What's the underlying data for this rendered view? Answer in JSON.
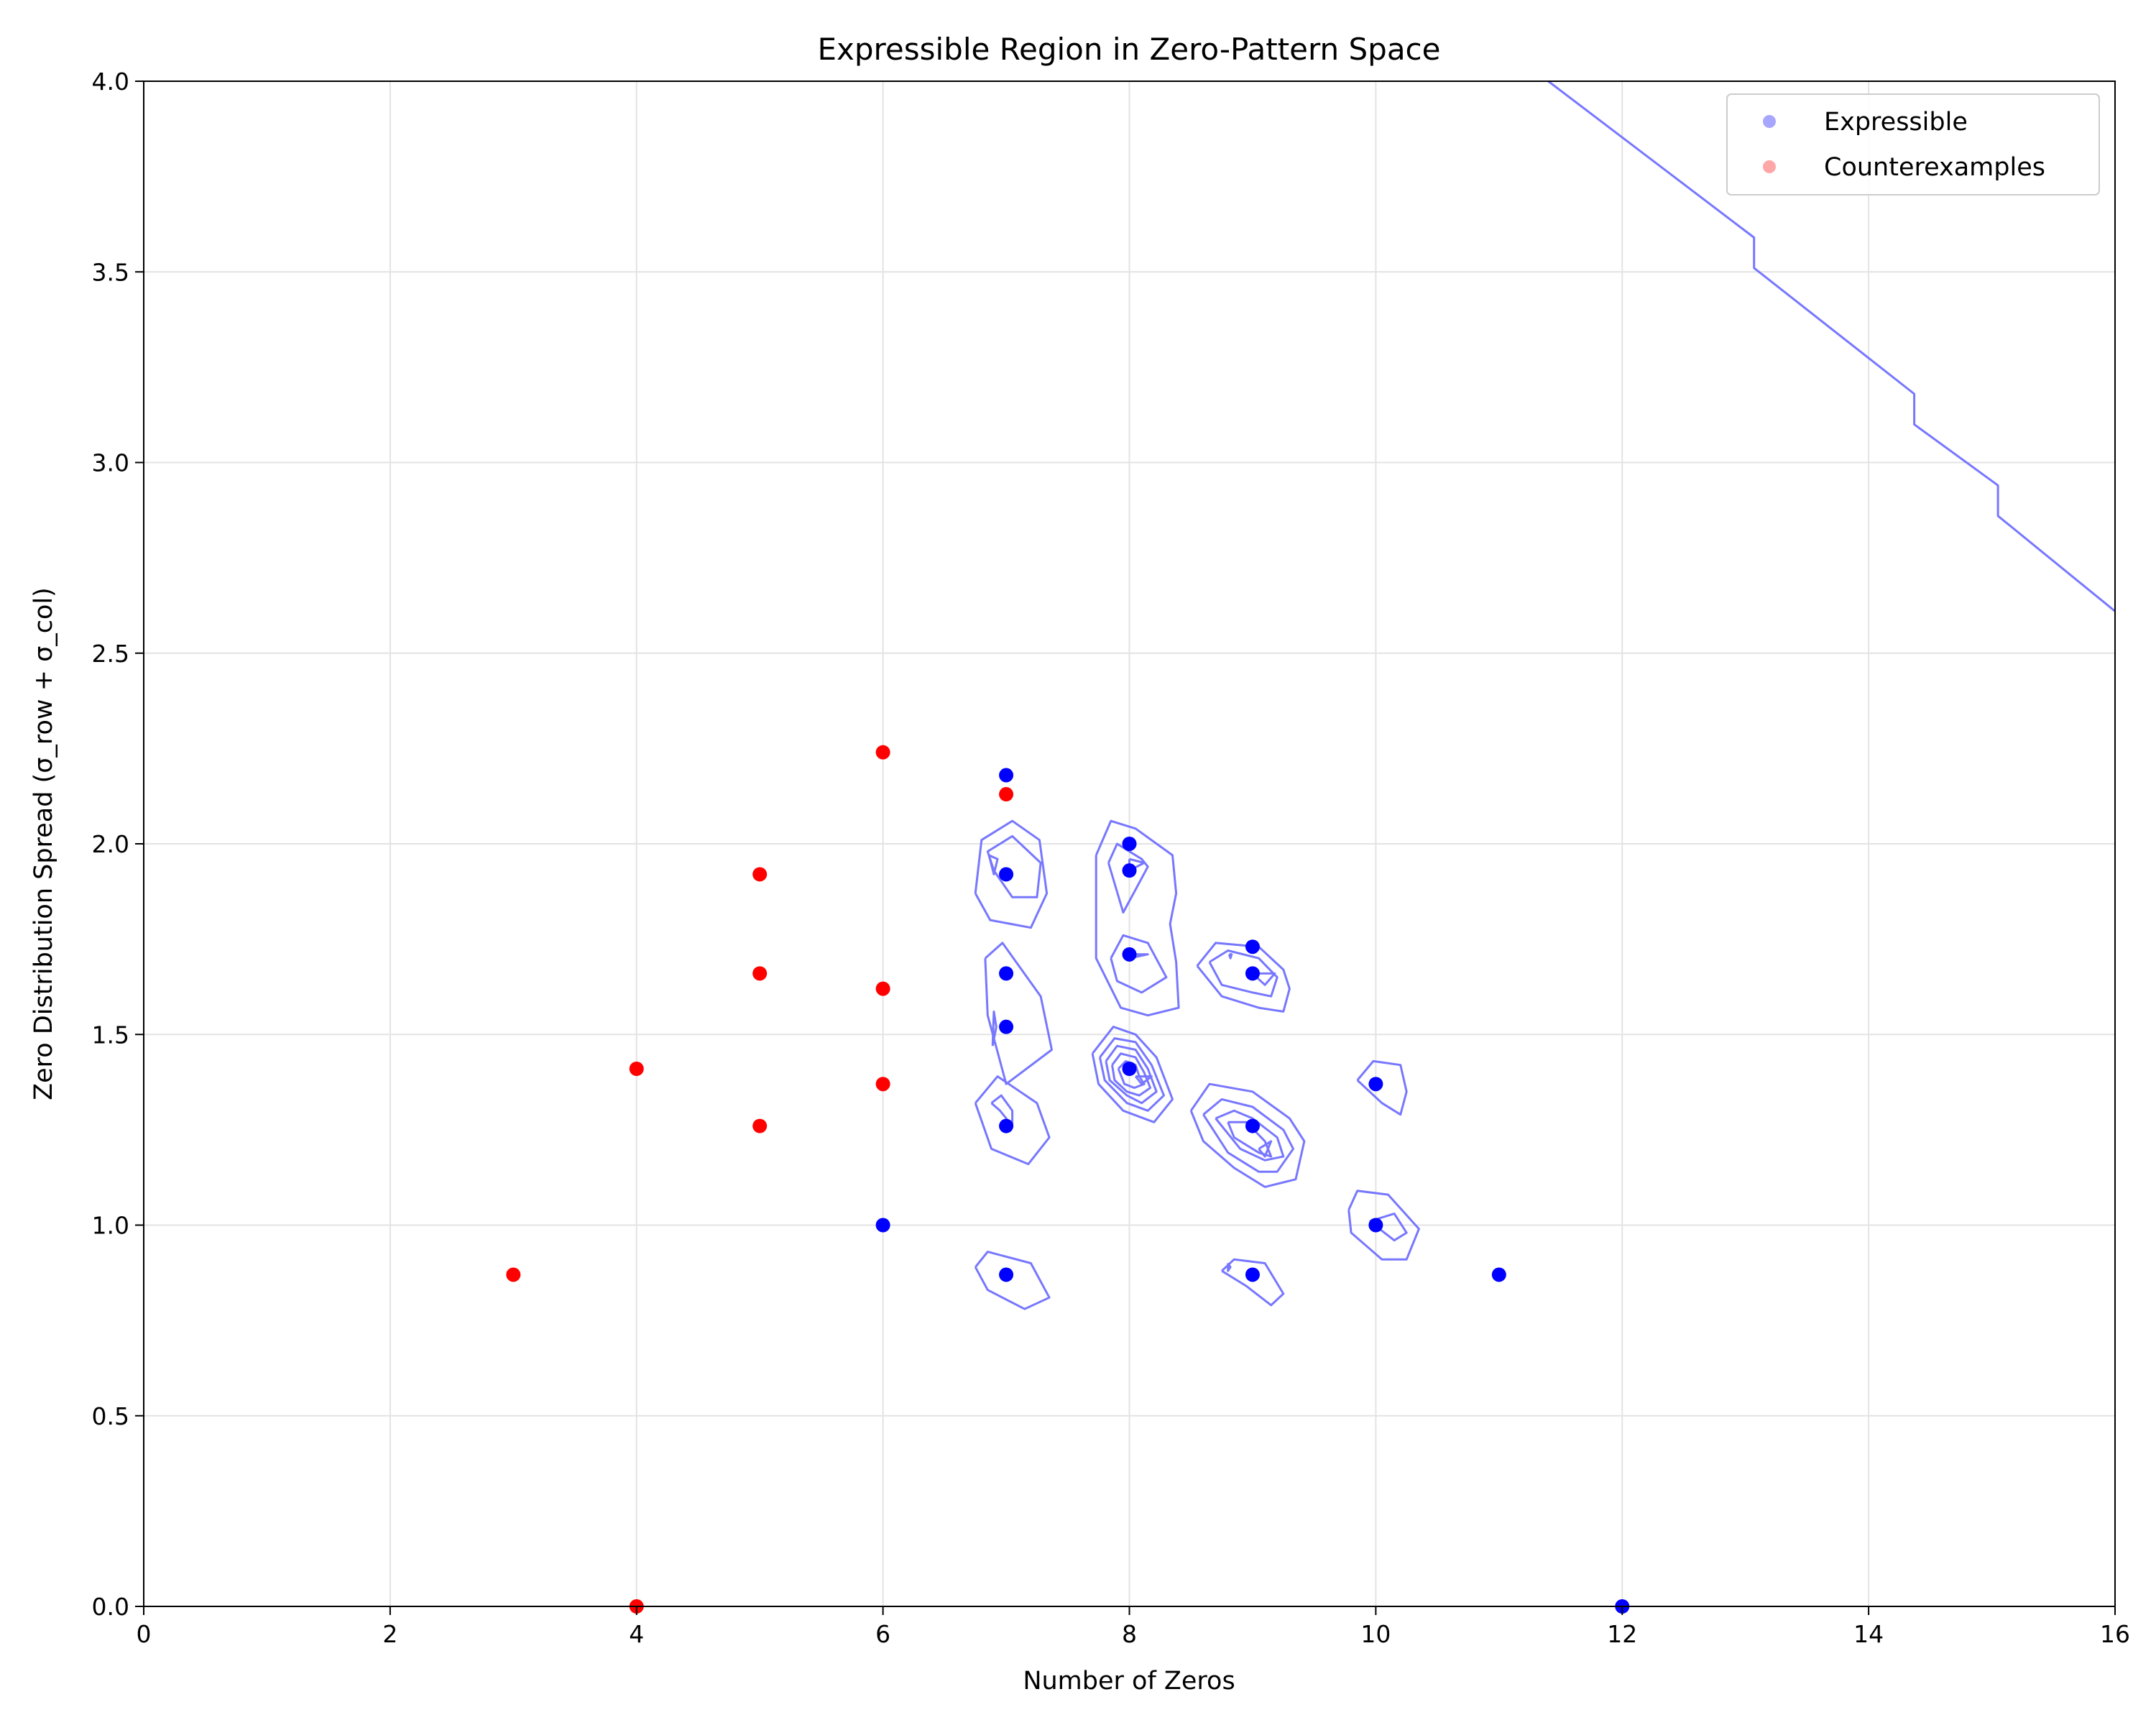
{
  "chart_data": {
    "type": "scatter",
    "title": "Expressible Region in Zero-Pattern Space",
    "xlabel": "Number of Zeros",
    "ylabel": "Zero Distribution Spread (σ_row + σ_col)",
    "xlim": [
      0,
      16
    ],
    "ylim": [
      0,
      4
    ],
    "xticks": [
      "0",
      "2",
      "4",
      "6",
      "8",
      "10",
      "12",
      "14",
      "16"
    ],
    "yticks": [
      "0.0",
      "0.5",
      "1.0",
      "1.5",
      "2.0",
      "2.5",
      "3.0",
      "3.5",
      "4.0"
    ],
    "grid": true,
    "legend_position": "top-right",
    "series": [
      {
        "name": "Expressible",
        "color": "#0000ff",
        "points": [
          {
            "x": 6,
            "y": 1.0
          },
          {
            "x": 7,
            "y": 2.18
          },
          {
            "x": 7,
            "y": 1.92
          },
          {
            "x": 7,
            "y": 1.66
          },
          {
            "x": 7,
            "y": 1.52
          },
          {
            "x": 7,
            "y": 1.26
          },
          {
            "x": 7,
            "y": 0.87
          },
          {
            "x": 8,
            "y": 2.0
          },
          {
            "x": 8,
            "y": 1.93
          },
          {
            "x": 8,
            "y": 1.71
          },
          {
            "x": 8,
            "y": 1.41
          },
          {
            "x": 9,
            "y": 1.73
          },
          {
            "x": 9,
            "y": 1.66
          },
          {
            "x": 9,
            "y": 1.26
          },
          {
            "x": 9,
            "y": 0.87
          },
          {
            "x": 10,
            "y": 1.37
          },
          {
            "x": 10,
            "y": 1.0
          },
          {
            "x": 11,
            "y": 0.87
          },
          {
            "x": 12,
            "y": 0.0
          }
        ]
      },
      {
        "name": "Counterexamples",
        "color": "#ff0000",
        "points": [
          {
            "x": 3,
            "y": 0.87
          },
          {
            "x": 4,
            "y": 0.0
          },
          {
            "x": 4,
            "y": 1.41
          },
          {
            "x": 5,
            "y": 1.26
          },
          {
            "x": 5,
            "y": 1.66
          },
          {
            "x": 5,
            "y": 1.92
          },
          {
            "x": 6,
            "y": 1.37
          },
          {
            "x": 6,
            "y": 1.62
          },
          {
            "x": 6,
            "y": 2.24
          },
          {
            "x": 7,
            "y": 2.13
          }
        ]
      }
    ],
    "contours": {
      "color": "#7777ff",
      "lines": [
        [
          [
            11.4,
            4.0
          ],
          [
            13.07,
            3.59
          ],
          [
            13.07,
            3.51
          ],
          [
            14.37,
            3.18
          ],
          [
            14.37,
            3.1
          ],
          [
            15.05,
            2.94
          ],
          [
            15.05,
            2.86
          ],
          [
            16.0,
            2.61
          ]
        ],
        [
          [
            6.75,
            1.87
          ],
          [
            6.87,
            1.8
          ],
          [
            7.2,
            1.78
          ],
          [
            7.33,
            1.87
          ],
          [
            7.27,
            2.01
          ],
          [
            7.05,
            2.06
          ],
          [
            6.8,
            2.01
          ],
          [
            6.75,
            1.87
          ]
        ],
        [
          [
            6.9,
            1.93
          ],
          [
            7.05,
            1.86
          ],
          [
            7.25,
            1.86
          ],
          [
            7.28,
            1.95
          ],
          [
            7.05,
            2.02
          ],
          [
            6.85,
            1.98
          ],
          [
            6.9,
            1.93
          ]
        ],
        [
          [
            6.86,
            1.97
          ],
          [
            6.9,
            1.92
          ],
          [
            6.93,
            1.96
          ],
          [
            6.86,
            1.97
          ]
        ],
        [
          [
            6.83,
            1.7
          ],
          [
            6.97,
            1.74
          ],
          [
            7.28,
            1.6
          ],
          [
            7.37,
            1.46
          ],
          [
            7.0,
            1.37
          ],
          [
            6.85,
            1.55
          ],
          [
            6.83,
            1.7
          ]
        ],
        [
          [
            6.89,
            1.47
          ],
          [
            6.92,
            1.52
          ],
          [
            6.9,
            1.56
          ],
          [
            6.89,
            1.47
          ]
        ],
        [
          [
            6.75,
            1.32
          ],
          [
            6.93,
            1.39
          ],
          [
            7.25,
            1.32
          ],
          [
            7.35,
            1.23
          ],
          [
            7.18,
            1.16
          ],
          [
            6.88,
            1.2
          ],
          [
            6.75,
            1.32
          ]
        ],
        [
          [
            6.88,
            1.32
          ],
          [
            6.96,
            1.34
          ],
          [
            7.05,
            1.3
          ],
          [
            7.05,
            1.26
          ],
          [
            6.95,
            1.3
          ],
          [
            6.88,
            1.32
          ]
        ],
        [
          [
            6.75,
            0.89
          ],
          [
            6.85,
            0.93
          ],
          [
            7.2,
            0.9
          ],
          [
            7.35,
            0.81
          ],
          [
            7.15,
            0.78
          ],
          [
            6.85,
            0.83
          ],
          [
            6.75,
            0.89
          ]
        ],
        [
          [
            7.73,
            1.97
          ],
          [
            7.85,
            2.06
          ],
          [
            8.05,
            2.04
          ],
          [
            8.35,
            1.97
          ],
          [
            8.38,
            1.87
          ],
          [
            8.33,
            1.79
          ],
          [
            8.38,
            1.69
          ],
          [
            8.4,
            1.57
          ],
          [
            8.15,
            1.55
          ],
          [
            7.93,
            1.57
          ],
          [
            7.73,
            1.7
          ],
          [
            7.73,
            1.97
          ]
        ],
        [
          [
            7.83,
            1.95
          ],
          [
            7.9,
            2.0
          ],
          [
            8.1,
            1.96
          ],
          [
            8.15,
            1.94
          ],
          [
            8.05,
            1.88
          ],
          [
            7.95,
            1.82
          ],
          [
            7.83,
            1.95
          ]
        ],
        [
          [
            8.0,
            1.96
          ],
          [
            8.12,
            1.95
          ],
          [
            8.0,
            1.93
          ],
          [
            8.0,
            1.96
          ]
        ],
        [
          [
            7.85,
            1.7
          ],
          [
            7.95,
            1.76
          ],
          [
            8.15,
            1.74
          ],
          [
            8.3,
            1.65
          ],
          [
            8.1,
            1.61
          ],
          [
            7.9,
            1.64
          ],
          [
            7.85,
            1.7
          ]
        ],
        [
          [
            8.0,
            1.71
          ],
          [
            8.15,
            1.71
          ],
          [
            8.0,
            1.7
          ],
          [
            8.0,
            1.71
          ]
        ],
        [
          [
            7.7,
            1.45
          ],
          [
            7.87,
            1.52
          ],
          [
            8.05,
            1.5
          ],
          [
            8.22,
            1.44
          ],
          [
            8.35,
            1.33
          ],
          [
            8.2,
            1.27
          ],
          [
            7.95,
            1.3
          ],
          [
            7.75,
            1.37
          ],
          [
            7.7,
            1.45
          ]
        ],
        [
          [
            7.76,
            1.44
          ],
          [
            7.88,
            1.49
          ],
          [
            8.05,
            1.48
          ],
          [
            8.18,
            1.42
          ],
          [
            8.28,
            1.34
          ],
          [
            8.15,
            1.3
          ],
          [
            7.98,
            1.32
          ],
          [
            7.8,
            1.38
          ],
          [
            7.76,
            1.44
          ]
        ],
        [
          [
            7.81,
            1.43
          ],
          [
            7.9,
            1.47
          ],
          [
            8.05,
            1.46
          ],
          [
            8.15,
            1.41
          ],
          [
            8.22,
            1.35
          ],
          [
            8.1,
            1.32
          ],
          [
            7.98,
            1.34
          ],
          [
            7.84,
            1.38
          ],
          [
            7.81,
            1.43
          ]
        ],
        [
          [
            7.86,
            1.42
          ],
          [
            7.93,
            1.45
          ],
          [
            8.05,
            1.44
          ],
          [
            8.12,
            1.4
          ],
          [
            8.17,
            1.36
          ],
          [
            8.08,
            1.34
          ],
          [
            7.98,
            1.35
          ],
          [
            7.88,
            1.38
          ],
          [
            7.86,
            1.42
          ]
        ],
        [
          [
            7.91,
            1.41
          ],
          [
            7.97,
            1.43
          ],
          [
            8.05,
            1.42
          ],
          [
            8.08,
            1.39
          ],
          [
            8.12,
            1.37
          ],
          [
            8.04,
            1.36
          ],
          [
            7.96,
            1.37
          ],
          [
            7.91,
            1.41
          ]
        ],
        [
          [
            8.05,
            1.39
          ],
          [
            8.18,
            1.39
          ],
          [
            8.1,
            1.37
          ],
          [
            8.05,
            1.39
          ]
        ],
        [
          [
            8.55,
            1.68
          ],
          [
            8.7,
            1.74
          ],
          [
            9.05,
            1.73
          ],
          [
            9.25,
            1.67
          ],
          [
            9.3,
            1.62
          ],
          [
            9.25,
            1.56
          ],
          [
            9.05,
            1.57
          ],
          [
            8.75,
            1.6
          ],
          [
            8.55,
            1.68
          ]
        ],
        [
          [
            8.65,
            1.69
          ],
          [
            8.8,
            1.72
          ],
          [
            9.05,
            1.7
          ],
          [
            9.2,
            1.65
          ],
          [
            9.15,
            1.6
          ],
          [
            9.0,
            1.61
          ],
          [
            8.75,
            1.63
          ],
          [
            8.65,
            1.69
          ]
        ],
        [
          [
            8.81,
            1.71
          ],
          [
            8.83,
            1.71
          ],
          [
            8.82,
            1.7
          ],
          [
            8.81,
            1.71
          ]
        ],
        [
          [
            9.0,
            1.66
          ],
          [
            9.18,
            1.66
          ],
          [
            9.1,
            1.63
          ],
          [
            9.0,
            1.66
          ]
        ],
        [
          [
            8.5,
            1.3
          ],
          [
            8.65,
            1.37
          ],
          [
            9.0,
            1.35
          ],
          [
            9.3,
            1.28
          ],
          [
            9.42,
            1.22
          ],
          [
            9.35,
            1.12
          ],
          [
            9.1,
            1.1
          ],
          [
            8.85,
            1.15
          ],
          [
            8.6,
            1.22
          ],
          [
            8.5,
            1.3
          ]
        ],
        [
          [
            8.6,
            1.29
          ],
          [
            8.75,
            1.33
          ],
          [
            9.0,
            1.31
          ],
          [
            9.25,
            1.25
          ],
          [
            9.33,
            1.2
          ],
          [
            9.2,
            1.14
          ],
          [
            9.05,
            1.14
          ],
          [
            8.8,
            1.19
          ],
          [
            8.6,
            1.29
          ]
        ],
        [
          [
            8.7,
            1.28
          ],
          [
            8.85,
            1.3
          ],
          [
            9.0,
            1.28
          ],
          [
            9.2,
            1.23
          ],
          [
            9.25,
            1.18
          ],
          [
            9.1,
            1.17
          ],
          [
            8.9,
            1.2
          ],
          [
            8.7,
            1.28
          ]
        ],
        [
          [
            8.8,
            1.27
          ],
          [
            8.95,
            1.27
          ],
          [
            9.1,
            1.22
          ],
          [
            9.15,
            1.18
          ],
          [
            9.05,
            1.19
          ],
          [
            8.85,
            1.23
          ],
          [
            8.8,
            1.27
          ]
        ],
        [
          [
            9.05,
            1.2
          ],
          [
            9.15,
            1.22
          ],
          [
            9.1,
            1.18
          ],
          [
            9.05,
            1.2
          ]
        ],
        [
          [
            9.85,
            1.38
          ],
          [
            9.98,
            1.43
          ],
          [
            10.2,
            1.42
          ],
          [
            10.25,
            1.35
          ],
          [
            10.2,
            1.29
          ],
          [
            10.05,
            1.32
          ],
          [
            9.85,
            1.38
          ]
        ],
        [
          [
            9.78,
            1.04
          ],
          [
            9.85,
            1.09
          ],
          [
            10.1,
            1.08
          ],
          [
            10.35,
            0.99
          ],
          [
            10.25,
            0.91
          ],
          [
            10.05,
            0.91
          ],
          [
            9.8,
            0.98
          ],
          [
            9.78,
            1.04
          ]
        ],
        [
          [
            9.95,
            1.01
          ],
          [
            10.15,
            1.03
          ],
          [
            10.25,
            0.98
          ],
          [
            10.15,
            0.96
          ],
          [
            9.95,
            1.01
          ]
        ],
        [
          [
            8.75,
            0.88
          ],
          [
            8.85,
            0.91
          ],
          [
            9.1,
            0.9
          ],
          [
            9.25,
            0.82
          ],
          [
            9.15,
            0.79
          ],
          [
            8.95,
            0.84
          ],
          [
            8.75,
            0.88
          ]
        ],
        [
          [
            8.8,
            0.9
          ],
          [
            8.82,
            0.89
          ],
          [
            8.8,
            0.88
          ],
          [
            8.8,
            0.9
          ]
        ]
      ]
    }
  }
}
